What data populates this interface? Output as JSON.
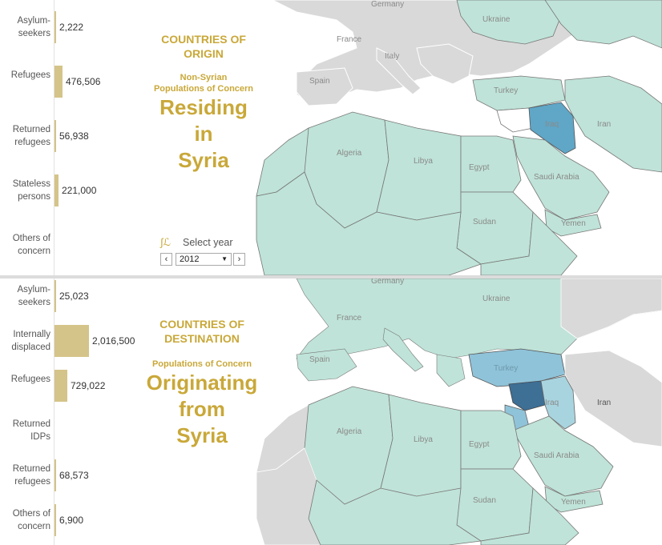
{
  "top": {
    "caption_section": [
      "COUNTRIES OF",
      "ORIGIN"
    ],
    "caption_sub": [
      "Non-Syrian",
      "Populations of Concern"
    ],
    "caption_big": [
      "Residing",
      "in",
      "Syria"
    ],
    "year_label": "Select year",
    "year_value": "2012",
    "bars": [
      {
        "label": "Asylum-seekers",
        "value": 2222,
        "display": "2,222"
      },
      {
        "label": "Refugees",
        "value": 476506,
        "display": "476,506"
      },
      {
        "label": "Returned refugees",
        "value": 56938,
        "display": "56,938"
      },
      {
        "label": "Stateless persons",
        "value": 221000,
        "display": "221,000"
      },
      {
        "label": "Others of concern",
        "value": 0,
        "display": ""
      }
    ],
    "map_labels": [
      "Germany",
      "Ukraine",
      "France",
      "Italy",
      "Spain",
      "Turkey",
      "Iraq",
      "Iran",
      "Algeria",
      "Libya",
      "Egypt",
      "Saudi Arabia",
      "Sudan",
      "Yemen"
    ],
    "highlight": {
      "Iraq": "#5fa6c7"
    }
  },
  "bottom": {
    "caption_section": [
      "COUNTRIES OF",
      "DESTINATION"
    ],
    "caption_sub": [
      "Populations of Concern"
    ],
    "caption_big": [
      "Originating",
      "from",
      "Syria"
    ],
    "bars": [
      {
        "label": "Asylum-seekers",
        "value": 25023,
        "display": "25,023"
      },
      {
        "label": "Internally displaced",
        "value": 2016500,
        "display": "2,016,500"
      },
      {
        "label": "Refugees",
        "value": 729022,
        "display": "729,022"
      },
      {
        "label": "Returned IDPs",
        "value": 0,
        "display": ""
      },
      {
        "label": "Returned refugees",
        "value": 68573,
        "display": "68,573"
      },
      {
        "label": "Others of concern",
        "value": 6900,
        "display": "6,900"
      }
    ],
    "map_labels": [
      "Germany",
      "Ukraine",
      "France",
      "Spain",
      "Turkey",
      "Iraq",
      "Iran",
      "Algeria",
      "Libya",
      "Egypt",
      "Saudi Arabia",
      "Sudan",
      "Yemen"
    ],
    "highlight": {
      "Turkey": "#8fc3d9",
      "Syria": "#3e6f95",
      "Iraq": "#a8d4df"
    }
  },
  "colors": {
    "land_concern": "#bfe3d8",
    "land_other": "#d9d9d9",
    "sea": "#ffffff",
    "border": "#777777",
    "bar": "#d5c489",
    "caption": "#c9a839"
  }
}
